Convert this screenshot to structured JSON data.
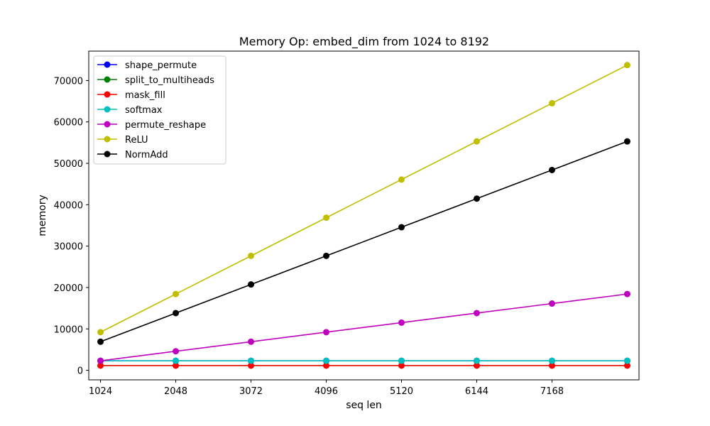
{
  "chart_data": {
    "type": "line",
    "title": "Memory Op: embed_dim from 1024 to 8192",
    "xlabel": "seq len",
    "ylabel": "memory",
    "x": [
      1024,
      2048,
      3072,
      4096,
      5120,
      6144,
      7168,
      8192
    ],
    "xticks": [
      1024,
      2048,
      3072,
      4096,
      5120,
      6144,
      7168
    ],
    "yticks": [
      0,
      10000,
      20000,
      30000,
      40000,
      50000,
      60000,
      70000
    ],
    "xlim": [
      864,
      8352
    ],
    "ylim": [
      -2300,
      77100
    ],
    "legend_position": "upper-left",
    "grid": false,
    "series": [
      {
        "name": "shape_permute",
        "color": "#0000ff",
        "values": [
          2304,
          2304,
          2304,
          2304,
          2304,
          2304,
          2304,
          2304
        ]
      },
      {
        "name": "split_to_multiheads",
        "color": "#008000",
        "values": [
          1152,
          1152,
          1152,
          1152,
          1152,
          1152,
          1152,
          1152
        ]
      },
      {
        "name": "mask_fill",
        "color": "#ff0000",
        "values": [
          1152,
          1152,
          1152,
          1152,
          1152,
          1152,
          1152,
          1152
        ]
      },
      {
        "name": "softmax",
        "color": "#00bfbf",
        "values": [
          2304,
          2304,
          2304,
          2304,
          2304,
          2304,
          2304,
          2304
        ]
      },
      {
        "name": "permute_reshape",
        "color": "#bf00bf",
        "values": [
          2304,
          4608,
          6912,
          9216,
          11520,
          13824,
          16128,
          18432
        ]
      },
      {
        "name": "ReLU",
        "color": "#bfbf00",
        "values": [
          9216,
          18432,
          27648,
          36864,
          46080,
          55296,
          64512,
          73728
        ]
      },
      {
        "name": "NormAdd",
        "color": "#000000",
        "values": [
          6912,
          13824,
          20736,
          27648,
          34560,
          41472,
          48384,
          55296
        ]
      }
    ]
  }
}
